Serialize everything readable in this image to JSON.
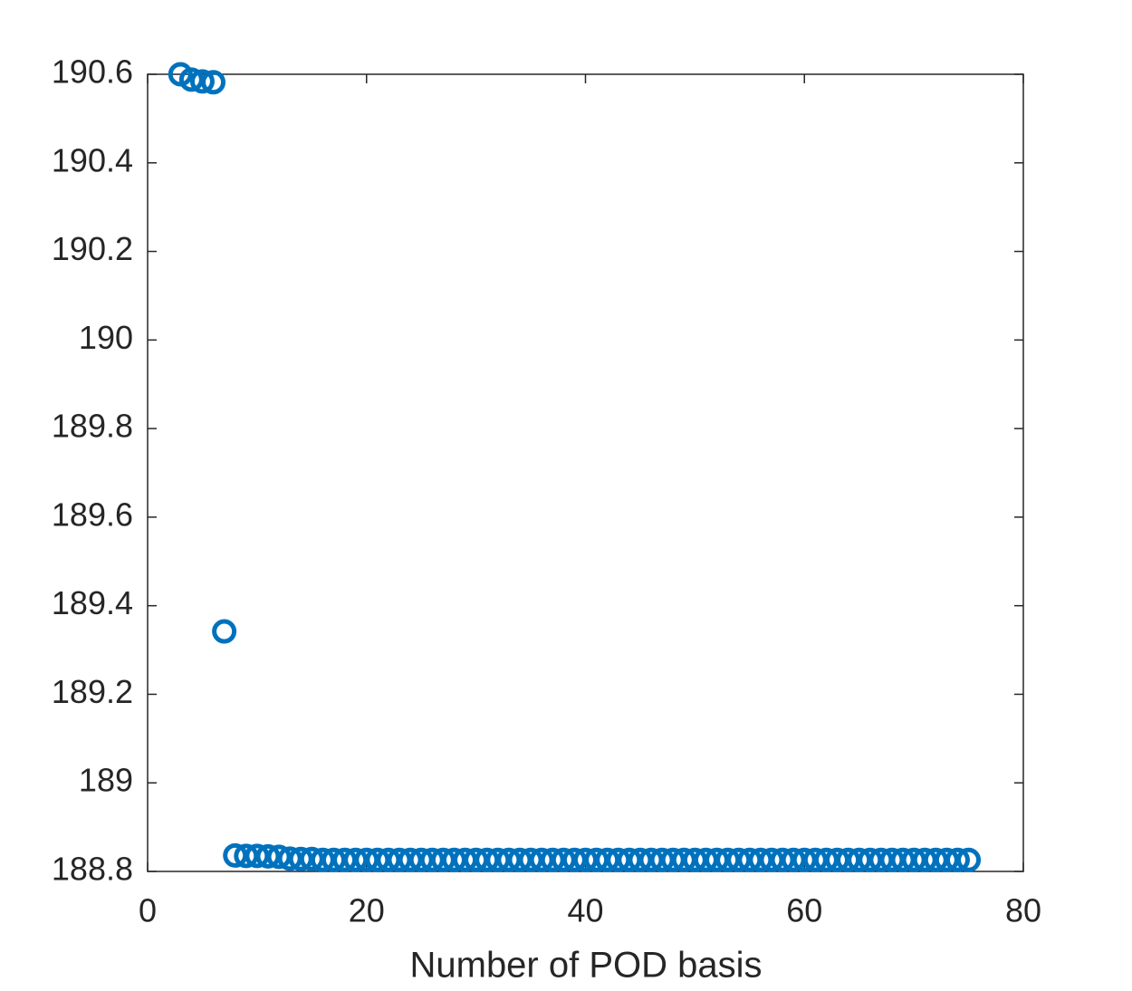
{
  "chart_data": {
    "type": "scatter",
    "x_label": "Number of POD basis",
    "x": [
      3,
      4,
      5,
      6,
      7,
      8,
      9,
      10,
      11,
      12,
      13,
      14,
      15,
      16,
      17,
      18,
      19,
      20,
      21,
      22,
      23,
      24,
      25,
      26,
      27,
      28,
      29,
      30,
      31,
      32,
      33,
      34,
      35,
      36,
      37,
      38,
      39,
      40,
      41,
      42,
      43,
      44,
      45,
      46,
      47,
      48,
      49,
      50,
      51,
      52,
      53,
      54,
      55,
      56,
      57,
      58,
      59,
      60,
      61,
      62,
      63,
      64,
      65,
      66,
      67,
      68,
      69,
      70,
      71,
      72,
      73,
      74,
      75
    ],
    "values": [
      190.6,
      190.588,
      190.584,
      190.582,
      189.342,
      188.836,
      188.835,
      188.835,
      188.834,
      188.833,
      188.829,
      188.828,
      188.828,
      188.826,
      188.826,
      188.826,
      188.826,
      188.826,
      188.826,
      188.826,
      188.826,
      188.826,
      188.826,
      188.826,
      188.826,
      188.826,
      188.826,
      188.826,
      188.826,
      188.826,
      188.826,
      188.826,
      188.826,
      188.826,
      188.826,
      188.826,
      188.826,
      188.826,
      188.826,
      188.826,
      188.826,
      188.826,
      188.826,
      188.826,
      188.826,
      188.826,
      188.826,
      188.826,
      188.826,
      188.826,
      188.826,
      188.826,
      188.826,
      188.826,
      188.826,
      188.826,
      188.826,
      188.826,
      188.826,
      188.826,
      188.826,
      188.826,
      188.826,
      188.826,
      188.826,
      188.826,
      188.826,
      188.826,
      188.826,
      188.826,
      188.826,
      188.826,
      188.826
    ],
    "color": "#0072BD",
    "xlim": [
      0,
      80
    ],
    "xticks": [
      0,
      20,
      40,
      60,
      80
    ],
    "ylim": [
      188.8,
      190.6
    ],
    "yticks": [
      188.8,
      189,
      189.2,
      189.4,
      189.6,
      189.8,
      190,
      190.2,
      190.4,
      190.6
    ]
  }
}
